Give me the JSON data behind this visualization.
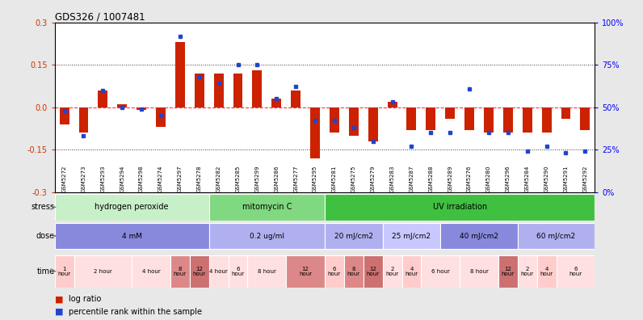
{
  "title": "GDS326 / 1007481",
  "samples": [
    "GSM5272",
    "GSM5273",
    "GSM5293",
    "GSM5294",
    "GSM5298",
    "GSM5274",
    "GSM5297",
    "GSM5278",
    "GSM5282",
    "GSM5285",
    "GSM5299",
    "GSM5286",
    "GSM5277",
    "GSM5295",
    "GSM5281",
    "GSM5275",
    "GSM5279",
    "GSM5283",
    "GSM5287",
    "GSM5288",
    "GSM5289",
    "GSM5276",
    "GSM5280",
    "GSM5296",
    "GSM5284",
    "GSM5290",
    "GSM5291",
    "GSM5292"
  ],
  "log_ratio": [
    -0.06,
    -0.09,
    0.06,
    0.01,
    -0.01,
    -0.07,
    0.23,
    0.12,
    0.12,
    0.12,
    0.13,
    0.03,
    0.06,
    -0.18,
    -0.09,
    -0.1,
    -0.12,
    0.02,
    -0.08,
    -0.08,
    -0.04,
    -0.08,
    -0.09,
    -0.09,
    -0.09,
    -0.09,
    -0.04,
    -0.08
  ],
  "percentile": [
    48,
    33,
    60,
    50,
    49,
    45,
    92,
    68,
    64,
    75,
    75,
    55,
    62,
    42,
    42,
    38,
    30,
    53,
    27,
    35,
    35,
    61,
    35,
    35,
    24,
    27,
    23,
    24
  ],
  "ylim": [
    -0.3,
    0.3
  ],
  "yticks_left": [
    -0.3,
    -0.15,
    0.0,
    0.15,
    0.3
  ],
  "yticks_right": [
    0,
    25,
    50,
    75,
    100
  ],
  "hline_dotted": [
    -0.15,
    0.15
  ],
  "stress_groups": [
    {
      "label": "hydrogen peroxide",
      "start": 0,
      "end": 8,
      "color": "#c8f0c8"
    },
    {
      "label": "mitomycin C",
      "start": 8,
      "end": 14,
      "color": "#80d880"
    },
    {
      "label": "UV irradiation",
      "start": 14,
      "end": 28,
      "color": "#40c040"
    }
  ],
  "dose_groups": [
    {
      "label": "4 mM",
      "start": 0,
      "end": 8,
      "color": "#8888dd"
    },
    {
      "label": "0.2 ug/ml",
      "start": 8,
      "end": 14,
      "color": "#b0b0f0"
    },
    {
      "label": "20 mJ/cm2",
      "start": 14,
      "end": 17,
      "color": "#b0b0f0"
    },
    {
      "label": "25 mJ/cm2",
      "start": 17,
      "end": 20,
      "color": "#c8c8ff"
    },
    {
      "label": "40 mJ/cm2",
      "start": 20,
      "end": 24,
      "color": "#8888dd"
    },
    {
      "label": "60 mJ/cm2",
      "start": 24,
      "end": 28,
      "color": "#b0b0f0"
    }
  ],
  "time_groups": [
    {
      "label": "1\nhour",
      "start": 0,
      "end": 1,
      "color": "#ffcccc"
    },
    {
      "label": "2 hour",
      "start": 1,
      "end": 4,
      "color": "#ffe0e0"
    },
    {
      "label": "4 hour",
      "start": 4,
      "end": 6,
      "color": "#ffe0e0"
    },
    {
      "label": "8\nhour",
      "start": 6,
      "end": 7,
      "color": "#dd8888"
    },
    {
      "label": "12\nhour",
      "start": 7,
      "end": 8,
      "color": "#cc7070"
    },
    {
      "label": "4 hour",
      "start": 8,
      "end": 9,
      "color": "#ffe0e0"
    },
    {
      "label": "6\nhour",
      "start": 9,
      "end": 10,
      "color": "#ffe0e0"
    },
    {
      "label": "8 hour",
      "start": 10,
      "end": 12,
      "color": "#ffe0e0"
    },
    {
      "label": "12\nhour",
      "start": 12,
      "end": 14,
      "color": "#dd8888"
    },
    {
      "label": "6\nhour",
      "start": 14,
      "end": 15,
      "color": "#ffcccc"
    },
    {
      "label": "8\nhour",
      "start": 15,
      "end": 16,
      "color": "#dd8888"
    },
    {
      "label": "12\nhour",
      "start": 16,
      "end": 17,
      "color": "#cc7070"
    },
    {
      "label": "2\nhour",
      "start": 17,
      "end": 18,
      "color": "#ffe0e0"
    },
    {
      "label": "4\nhour",
      "start": 18,
      "end": 19,
      "color": "#ffcccc"
    },
    {
      "label": "6 hour",
      "start": 19,
      "end": 21,
      "color": "#ffe0e0"
    },
    {
      "label": "8 hour",
      "start": 21,
      "end": 23,
      "color": "#ffe0e0"
    },
    {
      "label": "12\nhour",
      "start": 23,
      "end": 24,
      "color": "#cc7070"
    },
    {
      "label": "2\nhour",
      "start": 24,
      "end": 25,
      "color": "#ffe0e0"
    },
    {
      "label": "4\nhour",
      "start": 25,
      "end": 26,
      "color": "#ffcccc"
    },
    {
      "label": "6\nhour",
      "start": 26,
      "end": 28,
      "color": "#ffe0e0"
    }
  ],
  "bar_color": "#cc2200",
  "dot_color": "#2244cc",
  "bg_color": "#e8e8e8"
}
